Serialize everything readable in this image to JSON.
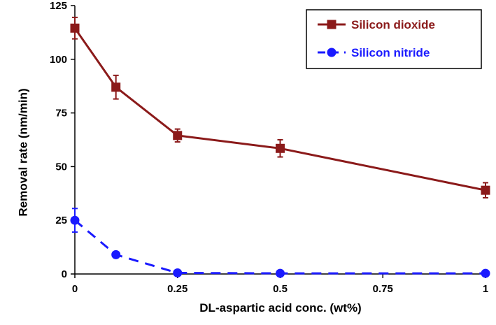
{
  "chart_data": {
    "type": "line",
    "title": "",
    "xlabel": "DL-aspartic acid conc. (wt%)",
    "ylabel": "Removal rate (nm/min)",
    "xlim": [
      0,
      1
    ],
    "ylim": [
      0,
      125
    ],
    "x_ticks": [
      "0",
      "0.25",
      "0.5",
      "0.75",
      "1"
    ],
    "y_ticks": [
      "0",
      "25",
      "50",
      "75",
      "100",
      "125"
    ],
    "grid": false,
    "legend_position": "top-right",
    "series": [
      {
        "name": "Silicon dioxide",
        "color": "#8b1a1a",
        "marker": "square",
        "line_style": "solid",
        "x": [
          0,
          0.1,
          0.25,
          0.5,
          1
        ],
        "values": [
          114.5,
          87,
          64.5,
          58.5,
          39
        ],
        "error": [
          5,
          5.5,
          3,
          4,
          3.5
        ]
      },
      {
        "name": "Silicon nitride",
        "color": "#1a1aff",
        "marker": "circle",
        "line_style": "dashed",
        "x": [
          0,
          0.1,
          0.25,
          0.5,
          1
        ],
        "values": [
          25,
          9,
          0.5,
          0.3,
          0.3
        ],
        "error": [
          5.5,
          1,
          0.3,
          0.2,
          0.2
        ]
      }
    ]
  }
}
